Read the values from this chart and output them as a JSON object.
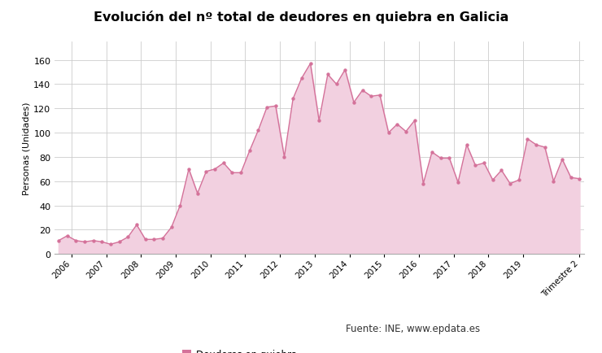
{
  "title": "Evolución del nº total de deudores en quiebra en Galicia",
  "ylabel": "Personas (Unidades)",
  "line_color": "#d4729a",
  "fill_color": "#f2d0e0",
  "marker_color": "#d4729a",
  "background_color": "#ffffff",
  "grid_color": "#cccccc",
  "ylim": [
    0,
    175
  ],
  "yticks": [
    0,
    20,
    40,
    60,
    80,
    100,
    120,
    140,
    160
  ],
  "legend_label": "Deudores en quiebra",
  "source_text": "Fuente: INE, www.epdata.es",
  "x_labels": [
    "2006",
    "2007",
    "2008",
    "2009",
    "2010",
    "2011",
    "2012",
    "2013",
    "2014",
    "2015",
    "2016",
    "2017",
    "2018",
    "2019",
    "Trimestre 2"
  ],
  "values": [
    11,
    15,
    11,
    10,
    11,
    10,
    8,
    10,
    14,
    24,
    12,
    12,
    13,
    22,
    40,
    70,
    50,
    68,
    70,
    75,
    67,
    67,
    85,
    102,
    121,
    122,
    80,
    128,
    145,
    157,
    110,
    148,
    140,
    152,
    125,
    135,
    130,
    131,
    100,
    107,
    101,
    110,
    58,
    84,
    79,
    79,
    59,
    90,
    73,
    75,
    61,
    69,
    58,
    61,
    95,
    90,
    88,
    60,
    78,
    63,
    62
  ],
  "n_full_years": 14
}
